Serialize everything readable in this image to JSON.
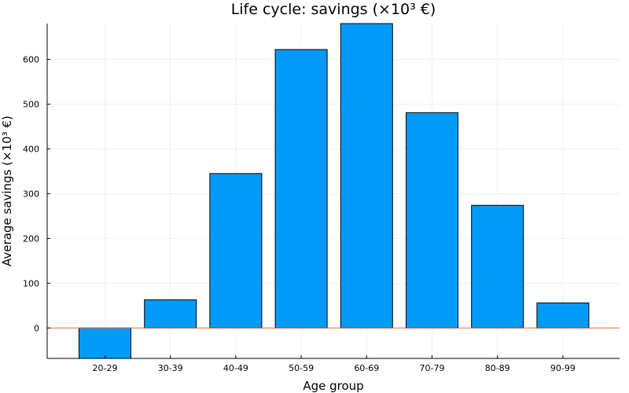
{
  "chart_data": {
    "type": "bar",
    "title": "Life cycle: savings (×10³ €)",
    "xlabel": "Age group",
    "ylabel": "Average savings (×10³ €)",
    "categories": [
      "20-29",
      "30-39",
      "40-49",
      "50-59",
      "60-69",
      "70-79",
      "80-89",
      "90-99"
    ],
    "values": [
      -68,
      63,
      345,
      622,
      680,
      481,
      274,
      56
    ],
    "ylim": [
      -68,
      680
    ],
    "yticks": [
      0,
      100,
      200,
      300,
      400,
      500,
      600
    ],
    "ytick_labels": [
      "0",
      "100",
      "200",
      "300",
      "400",
      "500",
      "600"
    ],
    "grid": true,
    "legend": "none",
    "reference_line": 0,
    "colors": {
      "bar": "#009af9",
      "reference_line": "#e26f46"
    }
  }
}
